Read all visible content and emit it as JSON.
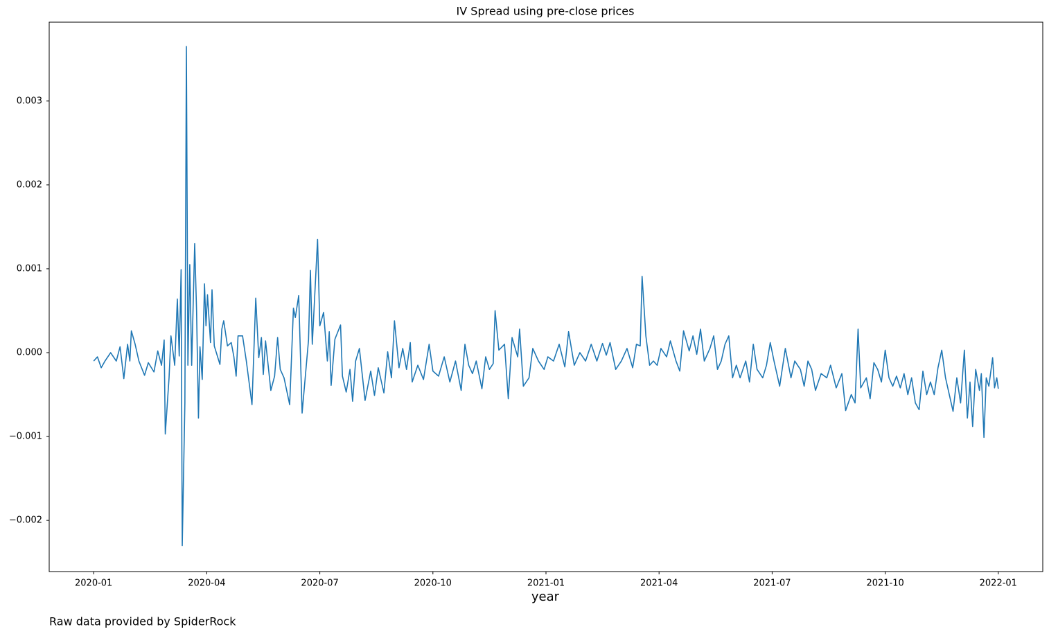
{
  "chart_data": {
    "type": "line",
    "title": "IV Spread using pre-close prices",
    "xlabel": "year",
    "footnote": "Raw data provided by SpiderRock",
    "color": "#1f77b4",
    "x": [
      0.0,
      0.1,
      0.2,
      0.3,
      0.45,
      0.6,
      0.7,
      0.8,
      0.9,
      0.96,
      1.0,
      1.1,
      1.2,
      1.35,
      1.45,
      1.6,
      1.7,
      1.8,
      1.87,
      1.9,
      2.0,
      2.05,
      2.15,
      2.22,
      2.27,
      2.32,
      2.35,
      2.42,
      2.46,
      2.5,
      2.55,
      2.6,
      2.68,
      2.73,
      2.78,
      2.82,
      2.88,
      2.94,
      2.98,
      3.02,
      3.1,
      3.14,
      3.2,
      3.35,
      3.4,
      3.45,
      3.55,
      3.65,
      3.72,
      3.78,
      3.83,
      3.95,
      4.05,
      4.2,
      4.3,
      4.38,
      4.45,
      4.5,
      4.56,
      4.7,
      4.8,
      4.88,
      4.95,
      5.05,
      5.2,
      5.3,
      5.35,
      5.44,
      5.53,
      5.7,
      5.75,
      5.8,
      5.94,
      6.0,
      6.1,
      6.2,
      6.25,
      6.3,
      6.4,
      6.55,
      6.6,
      6.7,
      6.8,
      6.87,
      6.95,
      7.05,
      7.2,
      7.35,
      7.45,
      7.55,
      7.7,
      7.8,
      7.9,
      7.98,
      8.1,
      8.2,
      8.3,
      8.4,
      8.45,
      8.6,
      8.75,
      8.9,
      9.0,
      9.15,
      9.3,
      9.45,
      9.6,
      9.75,
      9.85,
      9.95,
      10.05,
      10.15,
      10.3,
      10.4,
      10.5,
      10.6,
      10.65,
      10.75,
      10.9,
      11.0,
      11.1,
      11.25,
      11.3,
      11.4,
      11.55,
      11.65,
      11.8,
      11.95,
      12.05,
      12.2,
      12.35,
      12.5,
      12.6,
      12.75,
      12.9,
      13.05,
      13.2,
      13.35,
      13.5,
      13.6,
      13.7,
      13.85,
      14.0,
      14.15,
      14.3,
      14.4,
      14.5,
      14.55,
      14.65,
      14.75,
      14.85,
      14.95,
      15.05,
      15.2,
      15.3,
      15.45,
      15.55,
      15.65,
      15.8,
      15.9,
      16.0,
      16.1,
      16.2,
      16.35,
      16.45,
      16.55,
      16.65,
      16.75,
      16.85,
      16.95,
      17.05,
      17.15,
      17.3,
      17.4,
      17.5,
      17.6,
      17.75,
      17.85,
      17.95,
      18.05,
      18.2,
      18.35,
      18.5,
      18.6,
      18.75,
      18.85,
      18.95,
      19.05,
      19.15,
      19.3,
      19.45,
      19.55,
      19.7,
      19.85,
      19.95,
      20.1,
      20.2,
      20.28,
      20.35,
      20.5,
      20.6,
      20.7,
      20.8,
      20.9,
      21.0,
      21.1,
      21.2,
      21.3,
      21.4,
      21.5,
      21.6,
      21.7,
      21.8,
      21.9,
      22.0,
      22.1,
      22.2,
      22.3,
      22.4,
      22.5,
      22.6,
      22.7,
      22.8,
      22.9,
      23.0,
      23.1,
      23.18,
      23.25,
      23.32,
      23.4,
      23.5,
      23.55,
      23.62,
      23.68,
      23.75,
      23.85,
      23.9,
      23.96,
      24.0
    ],
    "values": [
      -0.0001,
      -5e-05,
      -0.00018,
      -0.0001,
      0.0,
      -0.0001,
      7e-05,
      -0.00031,
      0.0001,
      -0.0001,
      0.00026,
      0.0001,
      -0.0001,
      -0.00027,
      -0.00012,
      -0.00023,
      2e-05,
      -0.00015,
      0.00015,
      -0.00097,
      -0.0003,
      0.0002,
      -0.00015,
      0.00064,
      -4e-05,
      0.00099,
      -0.0023,
      -0.0006,
      0.00365,
      -0.00015,
      0.00105,
      -0.00015,
      0.0013,
      0.0005,
      -0.00078,
      7e-05,
      -0.00032,
      0.00082,
      0.00032,
      0.00069,
      0.00012,
      0.00075,
      8e-05,
      -0.00014,
      0.00028,
      0.00038,
      8e-05,
      0.00012,
      -5e-05,
      -0.00028,
      0.0002,
      0.0002,
      -0.0001,
      -0.00062,
      0.00065,
      -6e-05,
      0.00018,
      -0.00026,
      0.00014,
      -0.00045,
      -0.00028,
      0.00018,
      -0.0002,
      -0.0003,
      -0.00062,
      0.00053,
      0.00042,
      0.00068,
      -0.00072,
      0.00015,
      0.00098,
      0.0001,
      0.00135,
      0.00032,
      0.00048,
      -0.0001,
      0.00025,
      -0.00039,
      0.00016,
      0.00033,
      -0.00028,
      -0.00047,
      -0.0002,
      -0.00058,
      -0.0001,
      5e-05,
      -0.00057,
      -0.00022,
      -0.00051,
      -0.00018,
      -0.00048,
      1e-05,
      -0.0003,
      0.00038,
      -0.00018,
      5e-05,
      -0.0002,
      0.00012,
      -0.00035,
      -0.00015,
      -0.00032,
      0.0001,
      -0.00022,
      -0.00028,
      -5e-05,
      -0.00035,
      -0.0001,
      -0.00045,
      0.0001,
      -0.00015,
      -0.00025,
      -0.0001,
      -0.00043,
      -5e-05,
      -0.0002,
      -0.00013,
      0.0005,
      3e-05,
      0.0001,
      -0.00055,
      0.00018,
      -5e-05,
      0.00028,
      -0.0004,
      -0.0003,
      5e-05,
      -0.0001,
      -0.0002,
      -5e-05,
      -0.0001,
      0.0001,
      -0.00017,
      0.00025,
      -0.00015,
      0.0,
      -0.0001,
      0.0001,
      -0.0001,
      0.00011,
      -3e-05,
      0.00012,
      -0.0002,
      -0.0001,
      5e-05,
      -0.00018,
      0.0001,
      8e-05,
      0.00091,
      0.0002,
      -0.00015,
      -0.0001,
      -0.00015,
      5e-05,
      -5e-05,
      0.00014,
      -0.0001,
      -0.00022,
      0.00026,
      2e-05,
      0.0002,
      -2e-05,
      0.00028,
      -0.0001,
      5e-05,
      0.0002,
      -0.0002,
      -0.0001,
      0.0001,
      0.0002,
      -0.0003,
      -0.00015,
      -0.0003,
      -0.0001,
      -0.00035,
      0.0001,
      -0.0002,
      -0.0003,
      -0.00015,
      0.00012,
      -0.0001,
      -0.0004,
      5e-05,
      -0.0003,
      -0.0001,
      -0.0002,
      -0.0004,
      -0.0001,
      -0.0002,
      -0.00045,
      -0.00025,
      -0.0003,
      -0.00015,
      -0.00042,
      -0.00025,
      -0.00069,
      -0.0005,
      -0.0006,
      0.00028,
      -0.00042,
      -0.0003,
      -0.00055,
      -0.00012,
      -0.0002,
      -0.00035,
      3e-05,
      -0.0003,
      -0.0004,
      -0.00028,
      -0.00042,
      -0.00025,
      -0.0005,
      -0.0003,
      -0.0006,
      -0.00068,
      -0.00022,
      -0.0005,
      -0.00035,
      -0.0005,
      -0.00018,
      3e-05,
      -0.0003,
      -0.0005,
      -0.0007,
      -0.0003,
      -0.0006,
      3e-05,
      -0.00078,
      -0.00035,
      -0.00088,
      -0.0002,
      -0.00045,
      -0.00025,
      -0.00101,
      -0.0003,
      -0.0004,
      -6e-05,
      -0.00042,
      -0.0003,
      -0.00043
    ],
    "xlim": [
      -1.18,
      25.18
    ],
    "xticks": [
      {
        "value": 0,
        "label": "2020-01"
      },
      {
        "value": 3,
        "label": "2020-04"
      },
      {
        "value": 6,
        "label": "2020-07"
      },
      {
        "value": 9,
        "label": "2020-10"
      },
      {
        "value": 12,
        "label": "2021-01"
      },
      {
        "value": 15,
        "label": "2021-04"
      },
      {
        "value": 18,
        "label": "2021-07"
      },
      {
        "value": 21,
        "label": "2021-10"
      },
      {
        "value": 24,
        "label": "2022-01"
      }
    ],
    "ylim": [
      -0.00261,
      0.00394
    ],
    "yticks": [
      {
        "value": -0.002,
        "label": "−0.002"
      },
      {
        "value": -0.001,
        "label": "−0.001"
      },
      {
        "value": 0,
        "label": "0.000"
      },
      {
        "value": 0.001,
        "label": "0.001"
      },
      {
        "value": 0.002,
        "label": "0.002"
      },
      {
        "value": 0.003,
        "label": "0.003"
      }
    ]
  }
}
